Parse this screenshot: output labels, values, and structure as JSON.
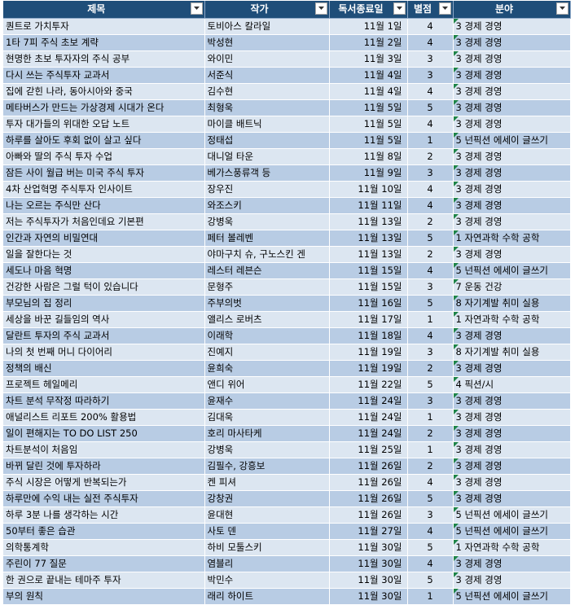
{
  "headers": [
    "제목",
    "작가",
    "독서종료일",
    "별점",
    "분야"
  ],
  "rows": [
    {
      "title": "퀀트로 가치투자",
      "author": "토비아스 칼라일",
      "date": "11월 1일",
      "rating": "4",
      "genre": "3 경제 경영"
    },
    {
      "title": "1타 7피 주식 초보 계략",
      "author": "박성현",
      "date": "11월 2일",
      "rating": "4",
      "genre": "3 경제 경영"
    },
    {
      "title": "현명한 초보 투자자의 주식 공부",
      "author": "와이민",
      "date": "11월 3일",
      "rating": "3",
      "genre": "3 경제 경영"
    },
    {
      "title": "다시 쓰는 주식투자 교과서",
      "author": "서준식",
      "date": "11월 4일",
      "rating": "3",
      "genre": "3 경제 경영"
    },
    {
      "title": "집에 갇힌 나라, 동아시아와 중국",
      "author": "김수현",
      "date": "11월 4일",
      "rating": "4",
      "genre": "3 경제 경영"
    },
    {
      "title": "메타버스가 만드는 가상경제 시대가 온다",
      "author": "최형욱",
      "date": "11월 5일",
      "rating": "5",
      "genre": "3 경제 경영"
    },
    {
      "title": "투자 대가들의 위대한 오답 노트",
      "author": "마이클 배트닉",
      "date": "11월 5일",
      "rating": "4",
      "genre": "3 경제 경영"
    },
    {
      "title": "하루를 살아도 후회 없이 살고 싶다",
      "author": "정태섭",
      "date": "11월 5일",
      "rating": "1",
      "genre": "5 넌픽션 에세이 글쓰기"
    },
    {
      "title": "아빠와 딸의 주식 투자 수업",
      "author": "대니얼 타운",
      "date": "11월 8일",
      "rating": "2",
      "genre": "3 경제 경영"
    },
    {
      "title": "잠든 사이 월급 버는 미국 주식 투자",
      "author": "베가스풍류객 등",
      "date": "11월 9일",
      "rating": "3",
      "genre": "3 경제 경영"
    },
    {
      "title": "4차 산업혁명 주식투자 인사이트",
      "author": "장우진",
      "date": "11월 10일",
      "rating": "4",
      "genre": "3 경제 경영"
    },
    {
      "title": "나는 오르는 주식만 산다",
      "author": "와조스키",
      "date": "11월 11일",
      "rating": "4",
      "genre": "3 경제 경영"
    },
    {
      "title": "저는 주식투자가 처음인데요 기본편",
      "author": "강병욱",
      "date": "11월 13일",
      "rating": "2",
      "genre": "3 경제 경영"
    },
    {
      "title": "인간과 자연의 비밀연대",
      "author": "페터 볼레벤",
      "date": "11월 13일",
      "rating": "5",
      "genre": "1 자연과학 수학 공학"
    },
    {
      "title": "일을 잘한다는 것",
      "author": "야마구치 슈, 구노스킨 겐",
      "date": "11월 13일",
      "rating": "2",
      "genre": "3 경제 경영"
    },
    {
      "title": "세도나 마음 혁명",
      "author": "레스터 레븐슨",
      "date": "11월 15일",
      "rating": "4",
      "genre": "5 넌픽션 에세이 글쓰기"
    },
    {
      "title": "건강한 사람은 그럴 턱이 있습니다",
      "author": "문형주",
      "date": "11월 15일",
      "rating": "3",
      "genre": "7 운동 건강"
    },
    {
      "title": "부모님의 집 정리",
      "author": "주부의벗",
      "date": "11월 16일",
      "rating": "5",
      "genre": "8 자기계발 취미 실용"
    },
    {
      "title": "세상을 바꾼 길들임의 역사",
      "author": "앨리스 로버츠",
      "date": "11월 17일",
      "rating": "1",
      "genre": "1 자연과학 수학 공학"
    },
    {
      "title": "달란트 투자의 주식 교과서",
      "author": "이래학",
      "date": "11월 18일",
      "rating": "4",
      "genre": "3 경제 경영"
    },
    {
      "title": "나의 첫 번째 머니 다이어리",
      "author": "진예지",
      "date": "11월 19일",
      "rating": "3",
      "genre": "8 자기계발 취미 실용"
    },
    {
      "title": "정책의 배신",
      "author": "윤희숙",
      "date": "11월 19일",
      "rating": "2",
      "genre": "3 경제 경영"
    },
    {
      "title": "프로젝트 헤일메리",
      "author": "앤디 위어",
      "date": "11월 22일",
      "rating": "5",
      "genre": "4 픽션/시"
    },
    {
      "title": "차트 분석 무작정 따라하기",
      "author": "윤재수",
      "date": "11월 24일",
      "rating": "3",
      "genre": "3 경제 경영"
    },
    {
      "title": "애널리스트 리포트 200% 활용법",
      "author": "김대욱",
      "date": "11월 24일",
      "rating": "1",
      "genre": "3 경제 경영"
    },
    {
      "title": "일이 편해지는 TO DO LIST 250",
      "author": "호리 마사타케",
      "date": "11월 24일",
      "rating": "2",
      "genre": "3 경제 경영"
    },
    {
      "title": "차트분석이 처음임",
      "author": "강병욱",
      "date": "11월 25일",
      "rating": "1",
      "genre": "3 경제 경영"
    },
    {
      "title": "바뀌 달린 것에 투자하라",
      "author": "김필수, 강흥보",
      "date": "11월 26일",
      "rating": "2",
      "genre": "3 경제 경영"
    },
    {
      "title": "주식 시장은 어떻게 반복되는가",
      "author": "켄 피셔",
      "date": "11월 26일",
      "rating": "4",
      "genre": "3 경제 경영"
    },
    {
      "title": "하루만에 수익 내는 실전 주식투자",
      "author": "강창권",
      "date": "11월 26일",
      "rating": "5",
      "genre": "3 경제 경영"
    },
    {
      "title": "하루 3분 나를 생각하는 시간",
      "author": "윤대현",
      "date": "11월 26일",
      "rating": "3",
      "genre": "5 넌픽션 에세이 글쓰기"
    },
    {
      "title": "50부터 좋은 습관",
      "author": "사토 덴",
      "date": "11월 27일",
      "rating": "4",
      "genre": "5 넌픽션 에세이 글쓰기"
    },
    {
      "title": "의학통계학",
      "author": "하비 모툴스키",
      "date": "11월 30일",
      "rating": "5",
      "genre": "1 자연과학 수학 공학"
    },
    {
      "title": "주린이 77 질문",
      "author": "염블리",
      "date": "11월 30일",
      "rating": "4",
      "genre": "3 경제 경영"
    },
    {
      "title": "한 권으로 끝내는 테마주 투자",
      "author": "박민수",
      "date": "11월 30일",
      "rating": "5",
      "genre": "3 경제 경영"
    },
    {
      "title": "부의 원칙",
      "author": "래리 하이트",
      "date": "11월 30일",
      "rating": "1",
      "genre": "5 넌픽션 에세이 글쓰기"
    }
  ],
  "colors": {
    "header_bg": "#1f4e79",
    "row_light": "#dce6f1",
    "row_dark": "#b8cce4",
    "comment_marker": "#1e8449"
  },
  "icons": {
    "filter_button": "dropdown-arrow-icon",
    "cell_marker": "green-triangle-marker"
  }
}
